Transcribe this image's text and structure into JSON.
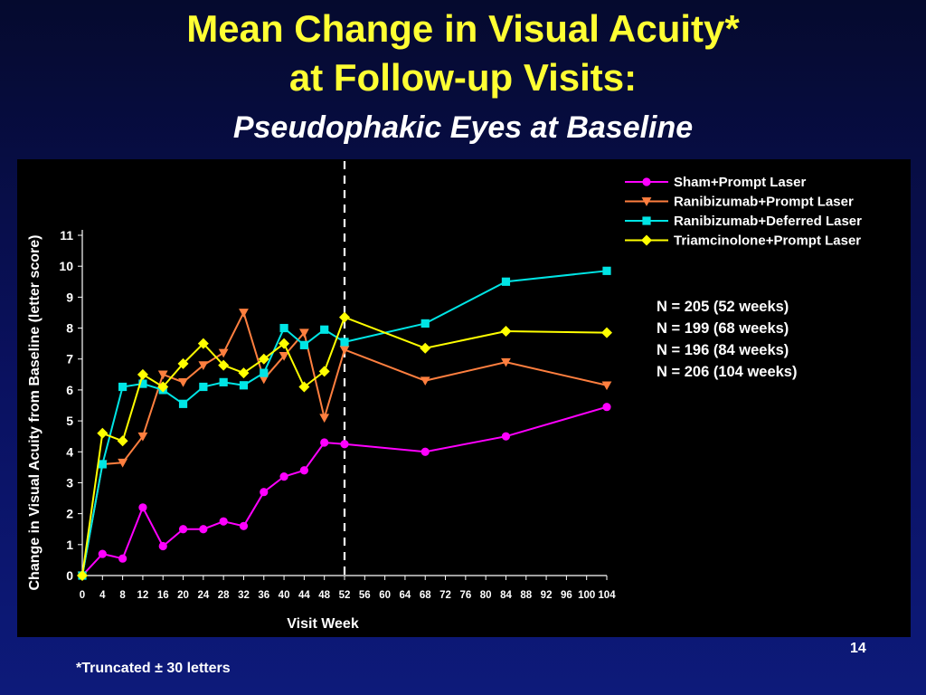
{
  "slide": {
    "title_line1": "Mean Change in Visual Acuity*",
    "title_line2": "at Follow-up Visits:",
    "subtitle": "Pseudophakic Eyes at Baseline",
    "footnote": "*Truncated ± 30 letters",
    "page_number": "14"
  },
  "colors": {
    "title": "#ffff33",
    "background_top": "#050a2e",
    "background_bottom": "#0d1a7a",
    "plot_background": "#000000"
  },
  "chart_data": {
    "type": "line",
    "title": "Mean Change in Visual Acuity at Follow-up Visits: Pseudophakic Eyes at Baseline",
    "xlabel": "Visit Week",
    "ylabel": "Change in Visual Acuity from Baseline (letter score)",
    "x_ticks": [
      "0",
      "4",
      "8",
      "12",
      "16",
      "20",
      "24",
      "28",
      "32",
      "36",
      "40",
      "44",
      "48",
      "52",
      "56",
      "60",
      "64",
      "68",
      "72",
      "76",
      "80",
      "84",
      "88",
      "92",
      "96",
      "100",
      "104"
    ],
    "xlim": [
      0,
      104
    ],
    "y_ticks": [
      "0",
      "1",
      "2",
      "3",
      "4",
      "5",
      "6",
      "7",
      "8",
      "9",
      "10",
      "11"
    ],
    "ylim": [
      0,
      11
    ],
    "reference_line_x": 52,
    "legend_position": "top-right",
    "series": [
      {
        "name": "Sham+Prompt Laser",
        "color": "#ff00ff",
        "marker": "circle",
        "x": [
          0,
          4,
          8,
          12,
          16,
          20,
          24,
          28,
          32,
          36,
          40,
          44,
          48,
          52,
          68,
          84,
          104
        ],
        "values": [
          0,
          0.7,
          0.55,
          2.2,
          0.95,
          1.5,
          1.5,
          1.75,
          1.6,
          2.7,
          3.2,
          3.4,
          4.3,
          4.25,
          4.0,
          4.5,
          5.45
        ]
      },
      {
        "name": "Ranibizumab+Prompt Laser",
        "color": "#ff7f3f",
        "marker": "triangle-down",
        "x": [
          0,
          4,
          8,
          12,
          16,
          20,
          24,
          28,
          32,
          36,
          40,
          44,
          48,
          52,
          68,
          84,
          104
        ],
        "values": [
          0,
          3.6,
          3.65,
          4.5,
          6.5,
          6.25,
          6.8,
          7.2,
          8.5,
          6.35,
          7.1,
          7.85,
          5.1,
          7.3,
          6.3,
          6.9,
          6.15
        ]
      },
      {
        "name": "Ranibizumab+Deferred Laser",
        "color": "#00e5e5",
        "marker": "square",
        "x": [
          0,
          4,
          8,
          12,
          16,
          20,
          24,
          28,
          32,
          36,
          40,
          44,
          48,
          52,
          68,
          84,
          104
        ],
        "values": [
          0,
          3.6,
          6.1,
          6.2,
          6.0,
          5.55,
          6.1,
          6.25,
          6.15,
          6.55,
          8.0,
          7.45,
          7.95,
          7.55,
          8.15,
          9.5,
          9.85
        ]
      },
      {
        "name": "Triamcinolone+Prompt Laser",
        "color": "#ffff00",
        "marker": "diamond",
        "x": [
          0,
          4,
          8,
          12,
          16,
          20,
          24,
          28,
          32,
          36,
          40,
          44,
          48,
          52,
          68,
          84,
          104
        ],
        "values": [
          0,
          4.6,
          4.35,
          6.5,
          6.1,
          6.85,
          7.5,
          6.8,
          6.55,
          7.0,
          7.5,
          6.1,
          6.6,
          8.35,
          7.35,
          7.9,
          7.85
        ]
      }
    ],
    "annotations": [
      "N = 205 (52 weeks)",
      "N = 199 (68 weeks)",
      "N = 196 (84 weeks)",
      "N = 206 (104 weeks)"
    ]
  }
}
